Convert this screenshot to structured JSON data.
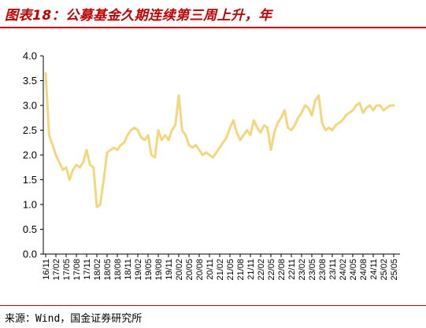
{
  "header": {
    "title": "图表18：公募基金久期连续第三周上升，年"
  },
  "footer": {
    "source": "来源：Wind，国金证券研究所"
  },
  "chart_data": {
    "type": "line",
    "title": "",
    "xlabel": "",
    "ylabel": "",
    "ylim": [
      0,
      4
    ],
    "yticks": [
      "0.0",
      "0.5",
      "1.0",
      "1.5",
      "2.0",
      "2.5",
      "3.0",
      "3.5",
      "4.0"
    ],
    "xticks": [
      "16/11",
      "17/02",
      "17/05",
      "17/08",
      "17/11",
      "18/02",
      "18/05",
      "18/08",
      "18/11",
      "19/02",
      "19/05",
      "19/08",
      "19/11",
      "20/02",
      "20/05",
      "20/08",
      "20/11",
      "21/02",
      "21/05",
      "21/08",
      "21/11",
      "22/02",
      "22/05",
      "22/08",
      "22/11",
      "23/02",
      "23/05",
      "23/08",
      "23/11",
      "24/02",
      "24/05",
      "24/08",
      "24/11",
      "25/02",
      "25/05"
    ],
    "grid": false,
    "line_color": "#f2d77e",
    "series": [
      {
        "x": [
          "16/11",
          "16/12",
          "17/01",
          "17/02",
          "17/03",
          "17/04",
          "17/05",
          "17/06",
          "17/07",
          "17/08",
          "17/09",
          "17/10",
          "17/11",
          "17/12",
          "18/01",
          "18/02",
          "18/03",
          "18/04",
          "18/05",
          "18/06",
          "18/07",
          "18/08",
          "18/09",
          "18/10",
          "18/11",
          "18/12",
          "19/01",
          "19/02",
          "19/03",
          "19/04",
          "19/05",
          "19/06",
          "19/07",
          "19/08",
          "19/09",
          "19/10",
          "19/11",
          "19/12",
          "20/01",
          "20/02",
          "20/03",
          "20/04",
          "20/05",
          "20/06",
          "20/07",
          "20/08",
          "20/09",
          "20/10",
          "20/11",
          "20/12",
          "21/01",
          "21/02",
          "21/03",
          "21/04",
          "21/05",
          "21/06",
          "21/07",
          "21/08",
          "21/09",
          "21/10",
          "21/11",
          "21/12",
          "22/01",
          "22/02",
          "22/03",
          "22/04",
          "22/05",
          "22/06",
          "22/07",
          "22/08",
          "22/09",
          "22/10",
          "22/11",
          "22/12",
          "23/01",
          "23/02",
          "23/03",
          "23/04",
          "23/05",
          "23/06",
          "23/07",
          "23/08",
          "23/09",
          "23/10",
          "23/11",
          "23/12",
          "24/01",
          "24/02",
          "24/03",
          "24/04",
          "24/05",
          "24/06",
          "24/07",
          "24/08",
          "24/09",
          "24/10",
          "24/11",
          "24/12",
          "25/01",
          "25/02",
          "25/03",
          "25/04",
          "25/05"
        ],
        "values": [
          3.65,
          2.4,
          2.2,
          2.0,
          1.85,
          1.7,
          1.75,
          1.5,
          1.7,
          1.8,
          1.75,
          1.85,
          2.1,
          1.8,
          1.75,
          0.95,
          1.0,
          1.5,
          2.05,
          2.1,
          2.15,
          2.1,
          2.2,
          2.25,
          2.4,
          2.5,
          2.55,
          2.5,
          2.35,
          2.3,
          2.4,
          2.0,
          1.95,
          2.5,
          2.3,
          2.4,
          2.3,
          2.5,
          2.6,
          3.2,
          2.5,
          2.4,
          2.2,
          2.15,
          2.2,
          2.1,
          2.0,
          2.05,
          2.0,
          1.95,
          2.05,
          2.15,
          2.25,
          2.35,
          2.55,
          2.7,
          2.45,
          2.3,
          2.4,
          2.5,
          2.4,
          2.7,
          2.55,
          2.45,
          2.6,
          2.55,
          2.1,
          2.45,
          2.65,
          2.75,
          2.9,
          2.55,
          2.5,
          2.6,
          2.75,
          2.85,
          3.0,
          2.95,
          2.8,
          3.1,
          3.2,
          2.65,
          2.5,
          2.55,
          2.5,
          2.6,
          2.65,
          2.7,
          2.8,
          2.85,
          2.9,
          3.0,
          3.05,
          2.85,
          2.95,
          3.0,
          2.9,
          3.0,
          3.0,
          2.9,
          2.95,
          3.0,
          3.0
        ]
      }
    ]
  }
}
